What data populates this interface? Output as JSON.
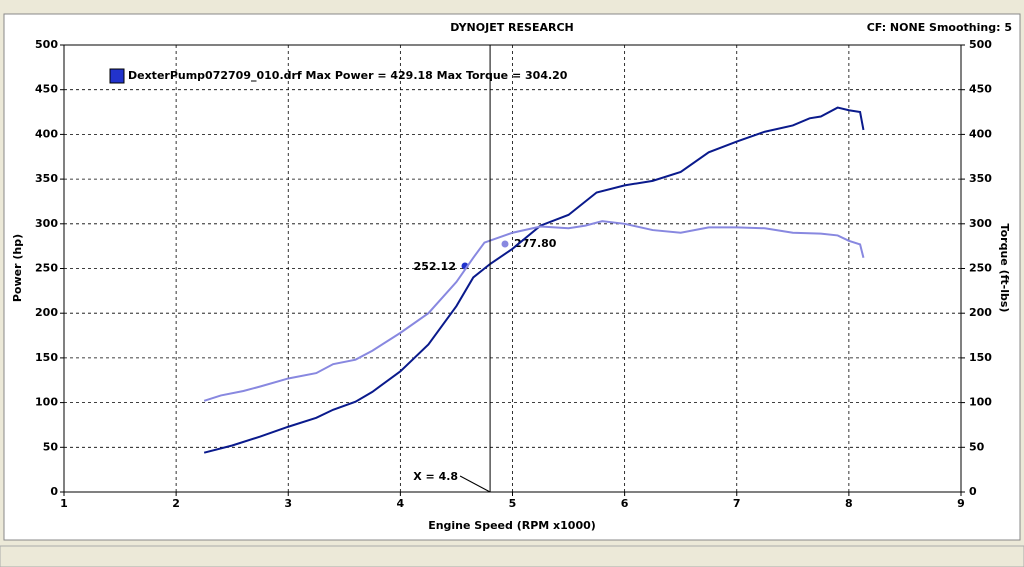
{
  "chart_data": {
    "type": "line",
    "title": "DYNOJET RESEARCH",
    "settings_text": "CF: NONE  Smoothing: 5",
    "legend": "DexterPump072709_010.drf Max Power = 429.18 Max Torque = 304.20",
    "legend_color": "#2233cc",
    "x_label": "Engine Speed (RPM x1000)",
    "y_label": "Power (hp)",
    "y2_label": "Torque (ft-lbs)",
    "xlim": [
      1,
      9
    ],
    "xticks": [
      1,
      2,
      3,
      4,
      5,
      6,
      7,
      8,
      9
    ],
    "ylim": [
      0,
      500
    ],
    "yticks": [
      0,
      50,
      100,
      150,
      200,
      250,
      300,
      350,
      400,
      450,
      500
    ],
    "y2lim": [
      0,
      500
    ],
    "y2ticks": [
      0,
      50,
      100,
      150,
      200,
      250,
      300,
      350,
      400,
      450,
      500
    ],
    "grid": true,
    "cursor": {
      "value": 4.8,
      "label": "X = 4.8"
    },
    "annotations": [
      "252.12",
      "277.80"
    ],
    "series": [
      {
        "color": "#0a1a8c",
        "axis": "y",
        "x": [
          2.25,
          2.5,
          2.75,
          3.0,
          3.25,
          3.4,
          3.6,
          3.75,
          4.0,
          4.25,
          4.5,
          4.65,
          4.8,
          5.0,
          5.25,
          5.5,
          5.75,
          6.0,
          6.25,
          6.5,
          6.75,
          7.0,
          7.25,
          7.5,
          7.65,
          7.75,
          7.9,
          8.0,
          8.1,
          8.13
        ],
        "values": [
          44,
          52,
          62,
          73,
          83,
          92,
          101,
          112,
          135,
          165,
          208,
          240,
          255,
          272,
          298,
          310,
          335,
          343,
          348,
          358,
          380,
          392,
          403,
          410,
          418,
          420,
          430,
          427,
          425,
          405
        ]
      },
      {
        "color": "#8888e0",
        "axis": "y2",
        "x": [
          2.25,
          2.4,
          2.6,
          2.75,
          3.0,
          3.25,
          3.4,
          3.6,
          3.75,
          4.0,
          4.25,
          4.5,
          4.65,
          4.75,
          5.0,
          5.25,
          5.5,
          5.65,
          5.8,
          6.0,
          6.25,
          6.5,
          6.75,
          7.0,
          7.25,
          7.5,
          7.75,
          7.9,
          8.0,
          8.1,
          8.13
        ],
        "values": [
          102,
          108,
          113,
          118,
          127,
          133,
          143,
          148,
          158,
          178,
          200,
          235,
          262,
          279,
          290,
          297,
          295,
          298,
          303,
          300,
          293,
          290,
          296,
          296,
          295,
          290,
          289,
          287,
          281,
          277,
          262
        ]
      }
    ]
  }
}
